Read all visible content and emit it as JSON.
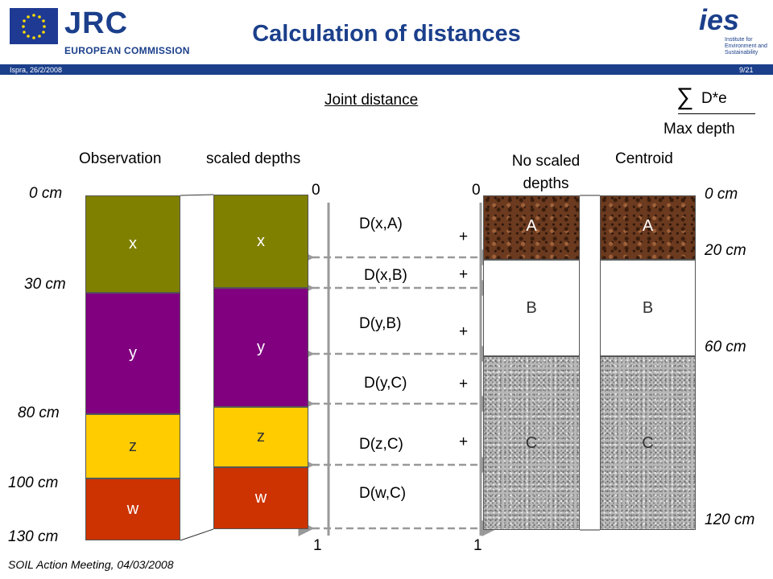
{
  "header": {
    "title": "Calculation of distances",
    "org_name": "JRC",
    "org_sub": "EUROPEAN COMMISSION",
    "place_date": "Ispra, 26/2/2008",
    "slide_number": "9/21",
    "ies_logo": "ies",
    "ies_sub": "Institute for Environment and Sustainability"
  },
  "formula": {
    "heading": "Joint distance",
    "sum_symbol": "∑",
    "numerator": "D*e",
    "denominator": "Max depth"
  },
  "columns": {
    "observation": "Observation",
    "scaled": "scaled depths",
    "no_scaled": "No scaled depths",
    "centroid": "Centroid"
  },
  "left_depths": [
    "0 cm",
    "30 cm",
    "80 cm",
    "100 cm",
    "130 cm"
  ],
  "right_depths": [
    "0 cm",
    "20 cm",
    "60 cm",
    "120 cm"
  ],
  "axis": {
    "left_top": "0",
    "left_bottom": "1",
    "right_top": "0",
    "right_bottom": "1"
  },
  "observation_layers": [
    "x",
    "y",
    "z",
    "w"
  ],
  "scaled_layers": [
    "x",
    "y",
    "z",
    "w"
  ],
  "centroid_layers": [
    "A",
    "B",
    "C"
  ],
  "distances": [
    "D(x,A)",
    "D(x,B)",
    "D(y,B)",
    "D(y,C)",
    "D(z,C)",
    "D(w,C)"
  ],
  "plus_signs": [
    "+",
    "+",
    "+",
    "+",
    "+"
  ],
  "footer": "SOIL Action Meeting, 04/03/2008"
}
